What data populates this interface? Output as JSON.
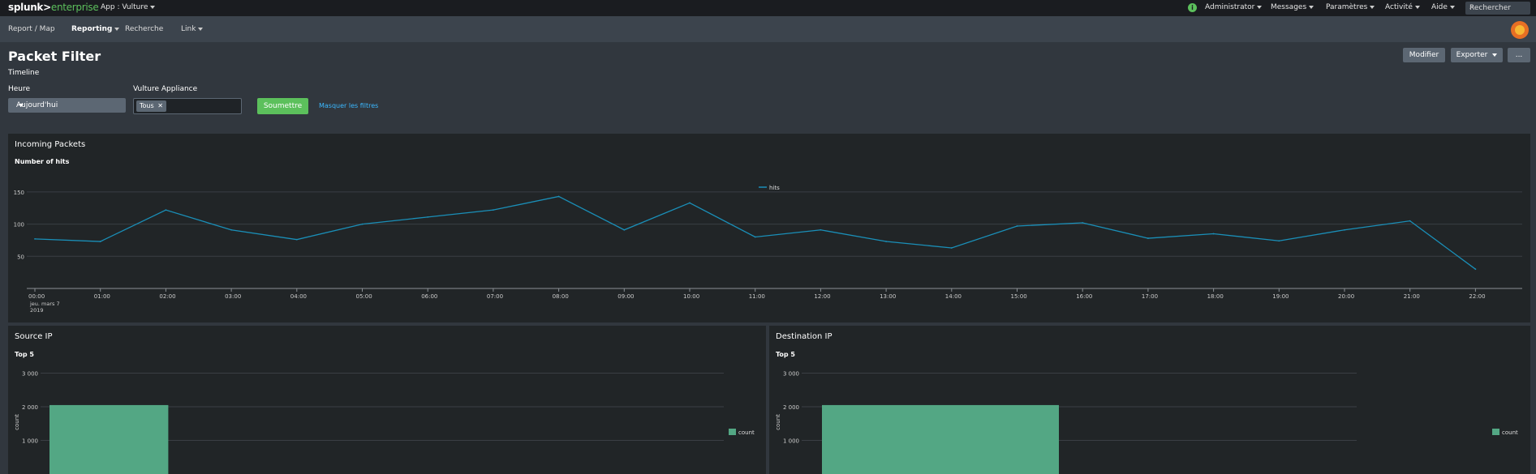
{
  "topbar": {
    "brand_primary": "splunk>",
    "brand_secondary": "enterprise",
    "app_menu": "App : Vulture",
    "info_icon": "i",
    "user_menu": "Administrator",
    "messages_menu": "Messages",
    "settings_menu": "Paramètres",
    "activity_menu": "Activité",
    "help_menu": "Aide",
    "search_placeholder": "Rechercher",
    "search_icon": "⌕"
  },
  "appbar": {
    "items": [
      "Report / Map",
      "Reporting",
      "Recherche",
      "Link"
    ]
  },
  "header": {
    "title": "Packet Filter",
    "subtitle": "Timeline",
    "edit_button": "Modifier",
    "export_button": "Exporter",
    "more_button": "..."
  },
  "filters": {
    "time_label": "Heure",
    "time_value": "Aujourd'hui",
    "appliance_label": "Vulture Appliance",
    "appliance_chip": "Tous",
    "chip_remove": "✕",
    "submit_label": "Soumettre",
    "hide_filters_label": "Masquer les filtres"
  },
  "panels": {
    "incoming": {
      "title": "Incoming Packets",
      "viz_title": "Number of hits"
    },
    "source": {
      "title": "Source IP",
      "viz_title": "Top 5"
    },
    "destination": {
      "title": "Destination IP",
      "viz_title": "Top 5"
    }
  },
  "colors": {
    "line": "#1a8fb8",
    "bar": "#53a784",
    "accent_green": "#5cc05c",
    "link": "#3bb8ff"
  },
  "chart_data": [
    {
      "type": "line",
      "x": [
        "00:00",
        "01:00",
        "02:00",
        "03:00",
        "04:00",
        "05:00",
        "06:00",
        "07:00",
        "08:00",
        "09:00",
        "10:00",
        "11:00",
        "12:00",
        "13:00",
        "14:00",
        "15:00",
        "16:00",
        "17:00",
        "18:00",
        "19:00",
        "20:00",
        "21:00",
        "22:00"
      ],
      "x_sublabel": [
        "jeu. mars 7",
        "2019"
      ],
      "series": [
        {
          "name": "hits",
          "values": [
            77,
            73,
            122,
            91,
            76,
            100,
            111,
            122,
            143,
            91,
            133,
            80,
            91,
            73,
            63,
            97,
            102,
            78,
            85,
            74,
            91,
            105,
            30
          ]
        }
      ],
      "yticks": [
        50,
        100,
        150
      ],
      "ylim": [
        0,
        165
      ],
      "legend": "top-center",
      "grid": true
    },
    {
      "type": "bar",
      "categories": [
        "",
        "",
        "",
        "",
        ""
      ],
      "series": [
        {
          "name": "count",
          "values": [
            2050,
            0,
            0,
            0,
            0
          ]
        }
      ],
      "ylabel": "count",
      "yticks": [
        "1 000",
        "2 000",
        "3 000"
      ],
      "ytick_values": [
        1000,
        2000,
        3000
      ],
      "ylim": [
        0,
        3000
      ],
      "legend": "right"
    },
    {
      "type": "bar",
      "categories": [
        "",
        ""
      ],
      "series": [
        {
          "name": "count",
          "values": [
            2050,
            0
          ]
        }
      ],
      "ylabel": "count",
      "yticks": [
        "1 000",
        "2 000",
        "3 000"
      ],
      "ytick_values": [
        1000,
        2000,
        3000
      ],
      "ylim": [
        0,
        3000
      ],
      "legend": "right"
    }
  ]
}
